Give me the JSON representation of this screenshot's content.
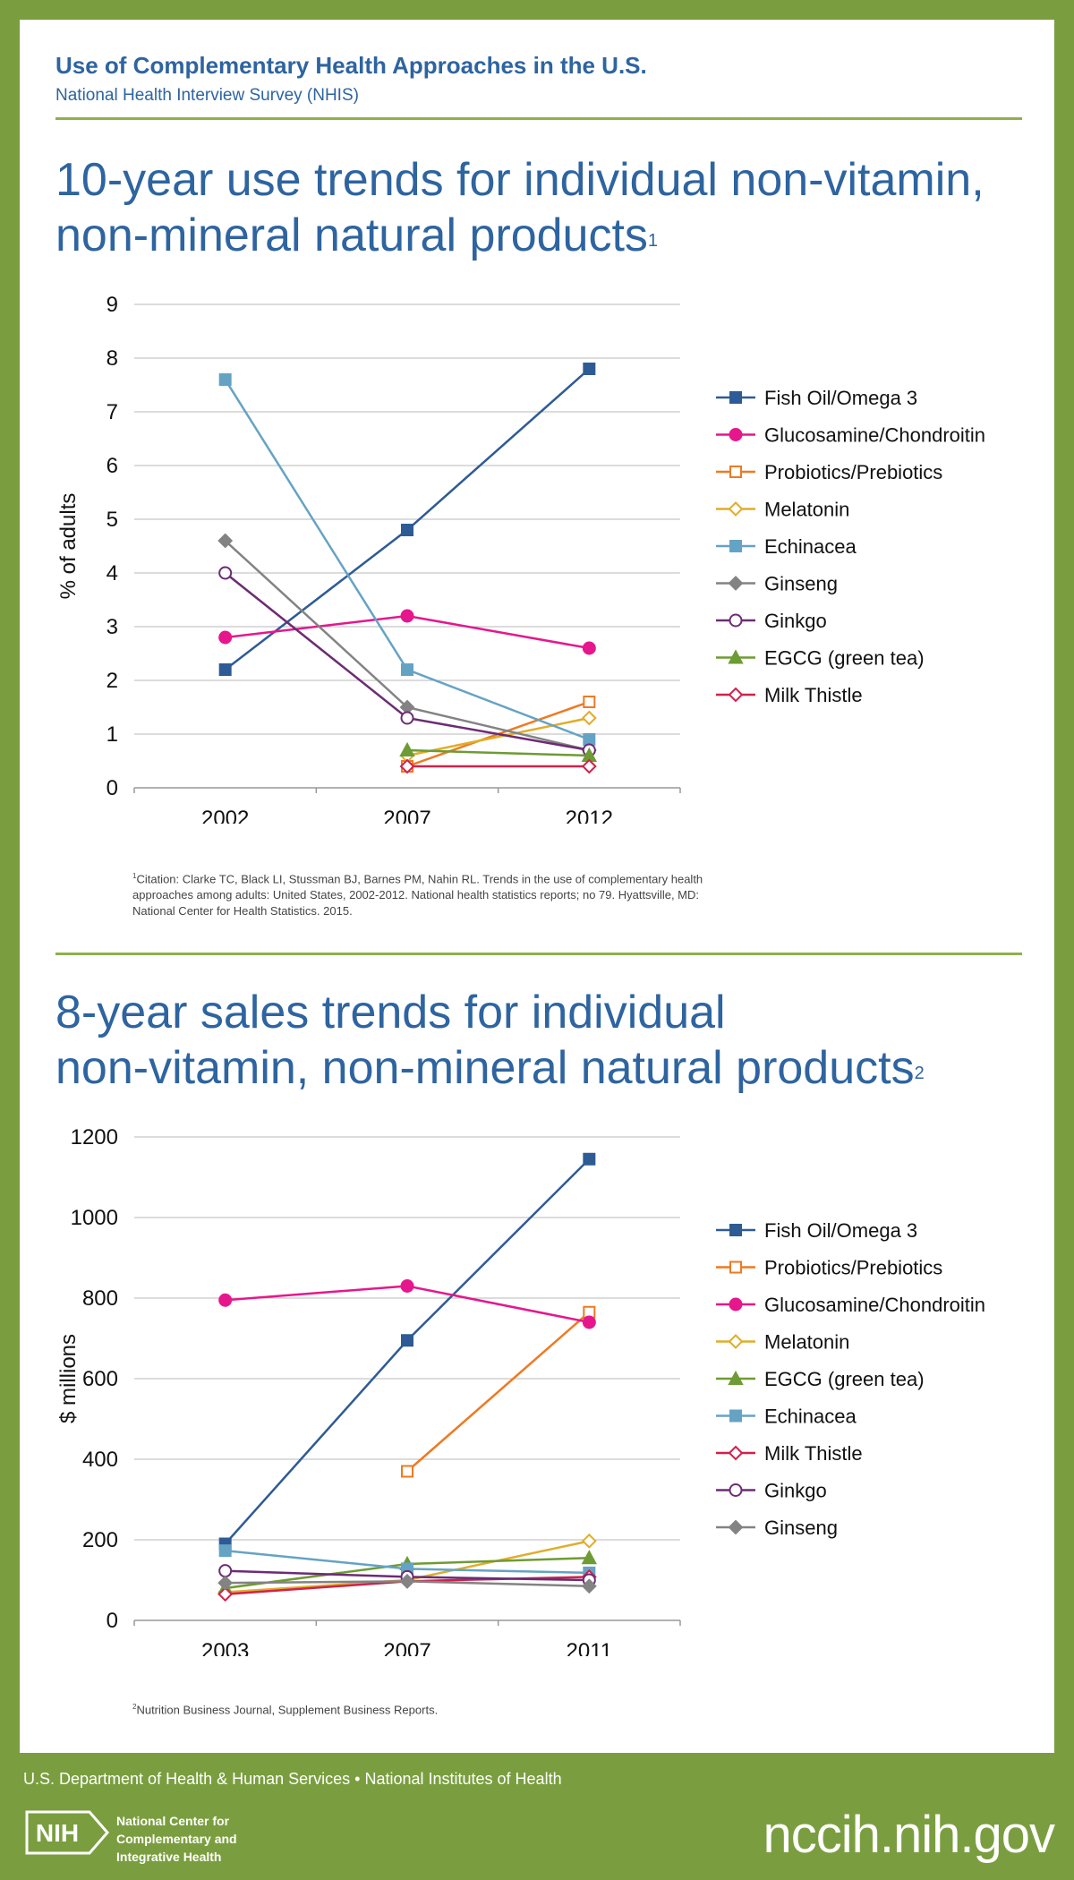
{
  "header": {
    "title": "Use of Complementary Health Approaches in the U.S.",
    "subtitle": "National Health Interview Survey (NHIS)"
  },
  "section1": {
    "title_line1": "10-year use trends for individual non-vitamin,",
    "title_line2": "non-mineral natural products",
    "title_sup": "1",
    "footnote_sup": "1",
    "footnote": "Citation: Clarke TC, Black LI, Stussman BJ, Barnes PM, Nahin RL. Trends in the use of complementary health approaches among adults: United States, 2002-2012. National health statistics reports; no 79. Hyattsville, MD: National Center for Health Statistics. 2015."
  },
  "section2": {
    "title_line1": "8-year sales trends for individual",
    "title_line2": "non-vitamin, non-mineral natural products",
    "title_sup": "2",
    "footnote_sup": "2",
    "footnote": "Nutrition Business Journal, Supplement Business Reports."
  },
  "footer": {
    "agency": "U.S. Department of Health & Human Services • National Institutes of Health",
    "nih_logo_text": "NIH",
    "center_name_line1": "National Center for",
    "center_name_line2": "Complementary and",
    "center_name_line3": "Integrative Health",
    "website": "nccih.nih.gov"
  },
  "chart_data": [
    {
      "type": "line",
      "title": "10-year use trends for individual non-vitamin, non-mineral natural products",
      "xlabel": "",
      "ylabel": "% of adults",
      "categories": [
        "2002",
        "2007",
        "2012"
      ],
      "ylim": [
        0,
        9
      ],
      "yticks": [
        0,
        1,
        2,
        3,
        4,
        5,
        6,
        7,
        8,
        9
      ],
      "grid": true,
      "legend": "right",
      "series": [
        {
          "name": "Fish Oil/Omega 3",
          "values": [
            2.2,
            4.8,
            7.8
          ],
          "color": "#2e5b94",
          "marker": "square-filled"
        },
        {
          "name": "Glucosamine/Chondroitin",
          "values": [
            2.8,
            3.2,
            2.6
          ],
          "color": "#e6178c",
          "marker": "circle-filled"
        },
        {
          "name": "Probiotics/Prebiotics",
          "values": [
            null,
            0.4,
            1.6
          ],
          "color": "#ee7a22",
          "marker": "square-open"
        },
        {
          "name": "Melatonin",
          "values": [
            null,
            0.6,
            1.3
          ],
          "color": "#e0ad2a",
          "marker": "diamond-open"
        },
        {
          "name": "Echinacea",
          "values": [
            7.6,
            2.2,
            0.9
          ],
          "color": "#65a3c4",
          "marker": "square-filled"
        },
        {
          "name": "Ginseng",
          "values": [
            4.6,
            1.5,
            0.7
          ],
          "color": "#838383",
          "marker": "diamond-filled"
        },
        {
          "name": "Ginkgo",
          "values": [
            4.0,
            1.3,
            0.7
          ],
          "color": "#6c2c74",
          "marker": "circle-open"
        },
        {
          "name": "EGCG (green tea)",
          "values": [
            null,
            0.7,
            0.6
          ],
          "color": "#6e9b34",
          "marker": "triangle-filled"
        },
        {
          "name": "Milk Thistle",
          "values": [
            null,
            0.4,
            0.4
          ],
          "color": "#d1214a",
          "marker": "diamond-open"
        }
      ]
    },
    {
      "type": "line",
      "title": "8-year sales trends for individual non-vitamin, non-mineral natural products",
      "xlabel": "",
      "ylabel": "$ millions",
      "categories": [
        "2003",
        "2007",
        "2011"
      ],
      "ylim": [
        0,
        1200
      ],
      "yticks": [
        0,
        200,
        400,
        600,
        800,
        1000,
        1200
      ],
      "grid": true,
      "legend": "right",
      "series": [
        {
          "name": "Fish Oil/Omega 3",
          "values": [
            190,
            695,
            1145
          ],
          "color": "#2e5b94",
          "marker": "square-filled"
        },
        {
          "name": "Probiotics/Prebiotics",
          "values": [
            null,
            370,
            765
          ],
          "color": "#ee7a22",
          "marker": "square-open"
        },
        {
          "name": "Glucosamine/Chondroitin",
          "values": [
            795,
            830,
            740
          ],
          "color": "#e6178c",
          "marker": "circle-filled"
        },
        {
          "name": "Melatonin",
          "values": [
            70,
            100,
            197
          ],
          "color": "#e0ad2a",
          "marker": "diamond-open"
        },
        {
          "name": "EGCG (green tea)",
          "values": [
            80,
            140,
            155
          ],
          "color": "#6e9b34",
          "marker": "triangle-filled"
        },
        {
          "name": "Echinacea",
          "values": [
            173,
            128,
            118
          ],
          "color": "#65a3c4",
          "marker": "square-filled"
        },
        {
          "name": "Milk Thistle",
          "values": [
            65,
            97,
            108
          ],
          "color": "#d1214a",
          "marker": "diamond-open"
        },
        {
          "name": "Ginkgo",
          "values": [
            123,
            108,
            100
          ],
          "color": "#6c2c74",
          "marker": "circle-open"
        },
        {
          "name": "Ginseng",
          "values": [
            93,
            97,
            85
          ],
          "color": "#838383",
          "marker": "diamond-filled"
        }
      ]
    }
  ]
}
